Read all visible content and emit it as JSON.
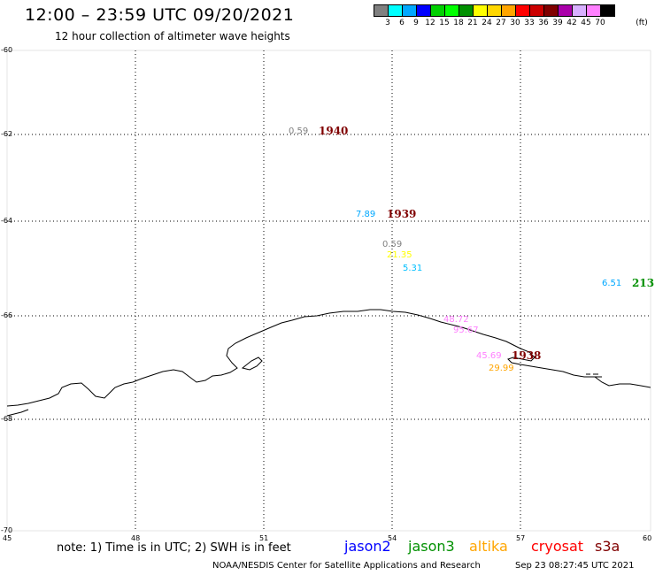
{
  "title": "12:00 – 23:59 UTC 09/20/2021",
  "subtitle": "12 hour collection of altimeter wave heights",
  "legend": {
    "colors": [
      "#808080",
      "#00ffff",
      "#00a8ff",
      "#0000ff",
      "#00d000",
      "#00ff00",
      "#009000",
      "#ffff00",
      "#ffd700",
      "#ffa500",
      "#ff0000",
      "#cc0000",
      "#800000",
      "#aa00aa",
      "#d8b0ff",
      "#ff80ff",
      "#000000"
    ],
    "ticks": [
      "3",
      "6",
      "9",
      "12",
      "15",
      "18",
      "21",
      "24",
      "27",
      "30",
      "33",
      "36",
      "39",
      "42",
      "45",
      "70",
      "(ft)"
    ]
  },
  "axes": {
    "lat_labels": [
      "-60",
      "-62",
      "-64",
      "-66",
      "-68",
      "-70"
    ],
    "lon_labels": [
      "45",
      "48",
      "51",
      "54",
      "57",
      "60"
    ]
  },
  "observations": [
    {
      "text": "0.59",
      "color": "#808080"
    },
    {
      "text": "1940",
      "color": "#800000"
    },
    {
      "text": "7.89",
      "color": "#00a8ff"
    },
    {
      "text": "1939",
      "color": "#800000"
    },
    {
      "text": "0.59",
      "color": "#808080"
    },
    {
      "text": "21.35",
      "color": "#ffff00"
    },
    {
      "text": "5.31",
      "color": "#00bfff"
    },
    {
      "text": "6.51",
      "color": "#00a8ff"
    },
    {
      "text": "213",
      "color": "#009000"
    },
    {
      "text": "48.72",
      "color": "#ff80ff"
    },
    {
      "text": "95.67",
      "color": "#ff80ff"
    },
    {
      "text": "45.69",
      "color": "#ff80ff"
    },
    {
      "text": "1938",
      "color": "#800000"
    },
    {
      "text": "29.99",
      "color": "#ffa500"
    }
  ],
  "footer": {
    "note": "note: 1) Time is in UTC; 2) SWH is in feet",
    "satellites": [
      {
        "name": "jason2",
        "color": "#0000ff"
      },
      {
        "name": "jason3",
        "color": "#009000"
      },
      {
        "name": "altika",
        "color": "#ffa500"
      },
      {
        "name": "cryosat",
        "color": "#ff0000"
      },
      {
        "name": "s3a",
        "color": "#800000"
      }
    ],
    "credit": "NOAA/NESDIS Center for Satellite Applications and Research",
    "timestamp": "Sep 23 08:27:45 UTC 2021"
  }
}
